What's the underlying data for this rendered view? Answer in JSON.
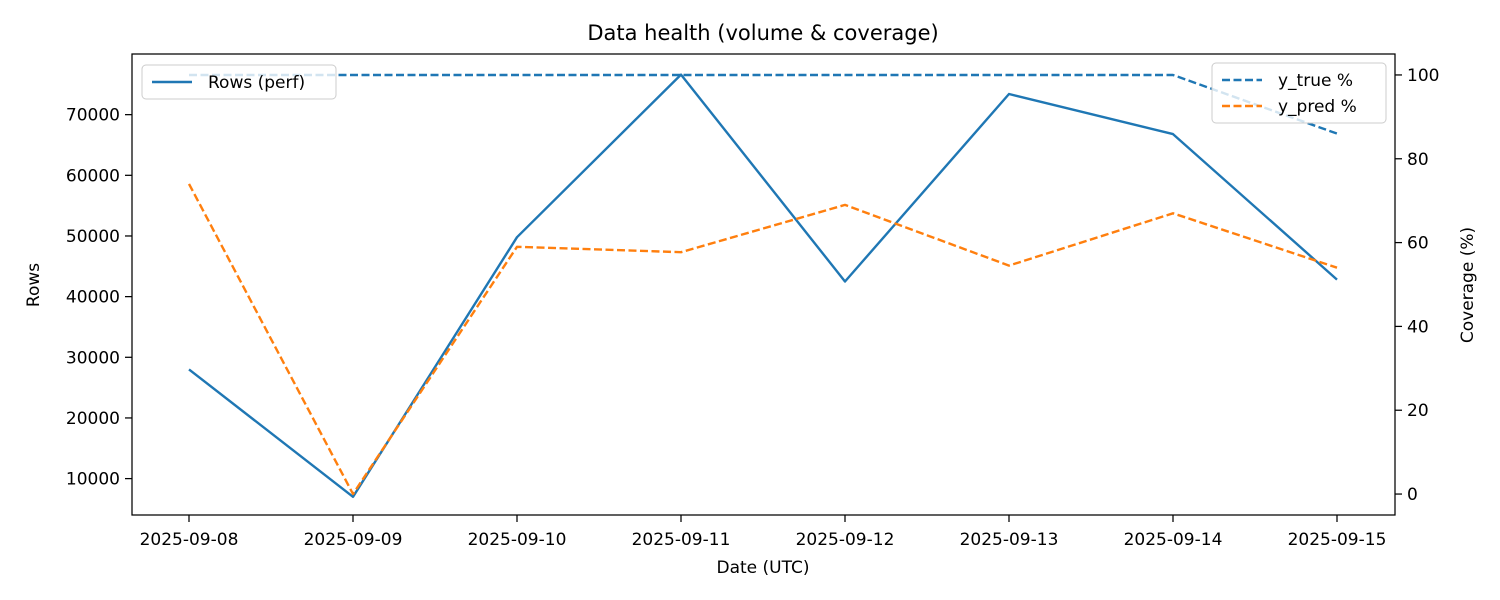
{
  "chart_data": {
    "type": "line",
    "title": "Data health (volume & coverage)",
    "xlabel": "Date (UTC)",
    "ylabel": "Rows",
    "y2label": "Coverage (%)",
    "x": [
      "2025-09-08",
      "2025-09-09",
      "2025-09-10",
      "2025-09-11",
      "2025-09-12",
      "2025-09-13",
      "2025-09-14",
      "2025-09-15"
    ],
    "ylim": [
      4000,
      80000
    ],
    "y2lim": [
      -5,
      105
    ],
    "yticks": [
      10000,
      20000,
      30000,
      40000,
      50000,
      60000,
      70000
    ],
    "y2ticks": [
      0,
      20,
      40,
      60,
      80,
      100
    ],
    "grid": false,
    "series": [
      {
        "name": "Rows (perf)",
        "axis": "left",
        "style": "solid",
        "color": "#1f77b4",
        "values": [
          28000,
          7000,
          49800,
          76600,
          42500,
          73400,
          66800,
          42800
        ]
      },
      {
        "name": "y_true %",
        "axis": "right",
        "style": "dashed",
        "color": "#1f77b4",
        "values": [
          100,
          100,
          100,
          100,
          100,
          100,
          100,
          86
        ]
      },
      {
        "name": "y_pred %",
        "axis": "right",
        "style": "dashed",
        "color": "#ff7f0e",
        "values": [
          74,
          0,
          59,
          57.7,
          69,
          54.5,
          67,
          54
        ]
      }
    ],
    "legends": [
      {
        "placement": "top-left",
        "entries": [
          "Rows (perf)"
        ]
      },
      {
        "placement": "top-right",
        "entries": [
          "y_true %",
          "y_pred %"
        ]
      }
    ]
  }
}
